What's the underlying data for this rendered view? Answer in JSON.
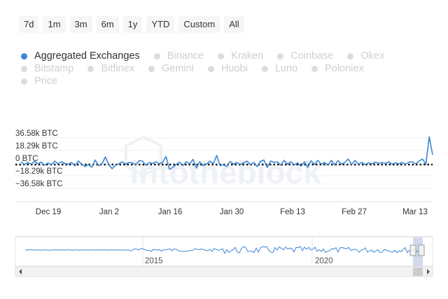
{
  "range_buttons": [
    "7d",
    "1m",
    "3m",
    "6m",
    "1y",
    "YTD",
    "Custom",
    "All"
  ],
  "legend": [
    {
      "name": "Aggregated Exchanges",
      "active": true,
      "color": "#3b87d4"
    },
    {
      "name": "Binance",
      "active": false
    },
    {
      "name": "Kraken",
      "active": false
    },
    {
      "name": "Coinbase",
      "active": false
    },
    {
      "name": "Okex",
      "active": false
    },
    {
      "name": "Bitstamp",
      "active": false
    },
    {
      "name": "Bitfinex",
      "active": false
    },
    {
      "name": "Gemini",
      "active": false
    },
    {
      "name": "Huobi",
      "active": false
    },
    {
      "name": "Luno",
      "active": false
    },
    {
      "name": "Poloniex",
      "active": false
    },
    {
      "name": "Price",
      "active": false
    }
  ],
  "watermark": "intotheblock",
  "chart_data": {
    "type": "line",
    "yticks": [
      {
        "label": "36.58k BTC",
        "value": 36580
      },
      {
        "label": "18.29k BTC",
        "value": 18290
      },
      {
        "label": "0 BTC",
        "value": 0
      },
      {
        "label": "−18.29k BTC",
        "value": -18290
      },
      {
        "label": "−36.58k BTC",
        "value": -36580
      }
    ],
    "ylim": [
      -36580,
      36580
    ],
    "xticks": [
      "Dec 19",
      "Jan 2",
      "Jan 16",
      "Jan 30",
      "Feb 13",
      "Feb 27",
      "Mar 13"
    ],
    "x_start": "Dec 14",
    "x_end": "Mar 15",
    "zero_line": true,
    "series": [
      {
        "color": "#3b87d4",
        "values": [
          2000,
          -2000,
          1000,
          -1500,
          2500,
          -1000,
          1500,
          -3000,
          500,
          -2500,
          3000,
          -1000,
          2000,
          -500,
          -1500,
          1000,
          -4000,
          3000,
          -1500,
          -5000,
          -2000,
          -6000,
          4500,
          -3500,
          -1000,
          9000,
          -2000,
          -8000,
          -3000,
          -1000,
          2000,
          -1500,
          1000,
          500,
          -2500,
          3500,
          3000,
          -3000,
          1000,
          -500,
          2000,
          -1000,
          1500,
          9500,
          -9000,
          -6000,
          -2000,
          1500,
          -3500,
          2000,
          -1000,
          5500,
          -7000,
          2000,
          -3500,
          -1500,
          3000,
          -1000,
          11000,
          -3500,
          -2500,
          -5000,
          2500,
          -1500,
          1000,
          -2000,
          500,
          3000,
          -2500,
          1000,
          -5000,
          2500,
          4500,
          -6500,
          3000,
          1000,
          2000,
          -3000,
          4000,
          -1500,
          2000,
          -2500,
          500,
          -4500,
          2000,
          -6000,
          3500,
          -2000,
          4000,
          -1500,
          1000,
          -3000,
          4000,
          -2500,
          3500,
          -1500,
          1000,
          6000,
          -2000,
          4000,
          -1500,
          1000,
          -2000,
          500,
          -1000,
          1500,
          -500,
          1000,
          -500,
          2000,
          -1500,
          500,
          -1000,
          1000,
          -1500,
          1500,
          2000,
          -1000,
          3000,
          6000,
          -1500,
          38000,
          12000
        ]
      }
    ]
  },
  "navigator": {
    "xticks": [
      "2015",
      "2020"
    ]
  }
}
